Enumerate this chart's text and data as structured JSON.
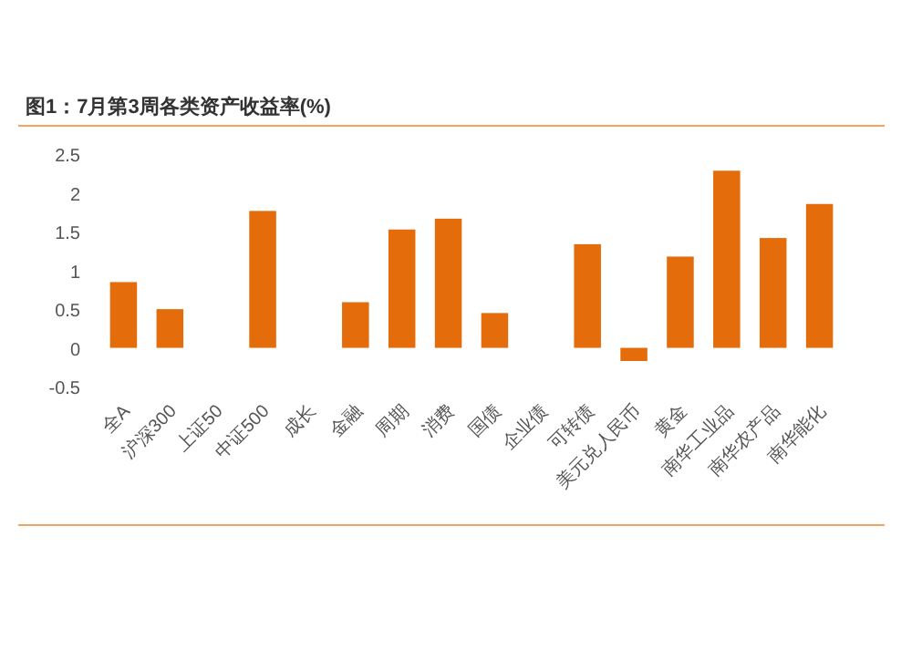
{
  "chart_data": {
    "type": "bar",
    "title": "图1：7月第3周各类资产收益率(%)",
    "categories": [
      "全A",
      "沪深300",
      "上证50",
      "中证500",
      "成长",
      "金融",
      "周期",
      "消费",
      "国债",
      "企业债",
      "可转债",
      "美元兑人民币",
      "黄金",
      "南华工业品",
      "南华农产品",
      "南华能化"
    ],
    "values": [
      0.85,
      0.5,
      null,
      1.77,
      null,
      0.59,
      1.53,
      1.67,
      0.45,
      null,
      1.34,
      -0.17,
      1.18,
      2.29,
      1.42,
      1.86
    ],
    "color": "#e46c0a",
    "ylim": [
      -0.5,
      2.8
    ],
    "yticks": [
      -0.5,
      0,
      0.5,
      1,
      1.5,
      2,
      2.5
    ],
    "grid": false
  }
}
